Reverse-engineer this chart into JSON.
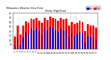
{
  "title": "Milwaukee Weather Dew Point",
  "subtitle": "Daily High/Low",
  "high_color": "#ff0000",
  "low_color": "#0000cd",
  "background_color": "#ffffff",
  "ylim": [
    0,
    80
  ],
  "ytick_positions": [
    10,
    20,
    30,
    40,
    50,
    60,
    70,
    80
  ],
  "ytick_labels": [
    "10",
    "20",
    "30",
    "40",
    "50",
    "60",
    "70",
    "80"
  ],
  "categories": [
    "1",
    "2",
    "3",
    "4",
    "5",
    "6",
    "7",
    "8",
    "9",
    "10",
    "11",
    "12",
    "13",
    "14",
    "15",
    "16",
    "17",
    "18",
    "19",
    "20",
    "21",
    "22",
    "23",
    "24",
    "25",
    "26",
    "27",
    "28",
    "29",
    "30",
    "31"
  ],
  "high_values": [
    28,
    52,
    32,
    52,
    62,
    58,
    68,
    66,
    70,
    63,
    58,
    70,
    65,
    73,
    70,
    68,
    63,
    70,
    66,
    68,
    53,
    60,
    56,
    58,
    63,
    60,
    40,
    56,
    52,
    52,
    48
  ],
  "low_values": [
    8,
    28,
    10,
    26,
    38,
    35,
    46,
    42,
    48,
    40,
    32,
    48,
    42,
    50,
    46,
    42,
    38,
    46,
    42,
    44,
    28,
    36,
    30,
    34,
    38,
    36,
    14,
    30,
    26,
    26,
    22
  ],
  "vline_positions": [
    20.5,
    22.5
  ],
  "legend_labels": [
    "Low",
    "High"
  ]
}
